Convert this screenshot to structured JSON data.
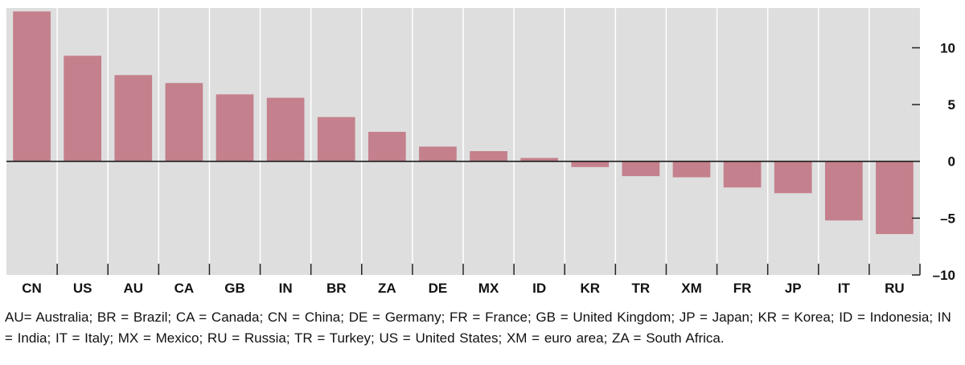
{
  "chart_data": {
    "type": "bar",
    "categories": [
      "CN",
      "US",
      "AU",
      "CA",
      "GB",
      "IN",
      "BR",
      "ZA",
      "DE",
      "MX",
      "ID",
      "KR",
      "TR",
      "XM",
      "FR",
      "JP",
      "IT",
      "RU"
    ],
    "values": [
      13.2,
      9.3,
      7.6,
      6.9,
      5.9,
      5.6,
      3.9,
      2.6,
      1.3,
      0.9,
      0.3,
      -0.5,
      -1.3,
      -1.4,
      -2.3,
      -2.8,
      -5.2,
      -6.4
    ],
    "ylim": [
      -10,
      13.5
    ],
    "yticks": [
      10,
      5,
      0,
      -5,
      -10
    ],
    "ytick_labels": [
      "10",
      "5",
      "0",
      "–5",
      "–10"
    ],
    "y_axis_side": "right",
    "grid": false,
    "title": "",
    "xlabel": "",
    "ylabel": "",
    "colors": {
      "bar": "#c4808c",
      "plot_background": "#dedede",
      "zero_line": "#1a1a1a",
      "divider": "#ffffff"
    }
  },
  "footnote": "AU= Australia; BR = Brazil; CA = Canada; CN = China; DE = Germany; FR = France; GB = United Kingdom; JP = Japan; KR = Korea; ID = Indonesia; IN = India; IT = Italy; MX = Mexico; RU = Russia; TR = Turkey; US = United States; XM = euro area; ZA = South Africa."
}
